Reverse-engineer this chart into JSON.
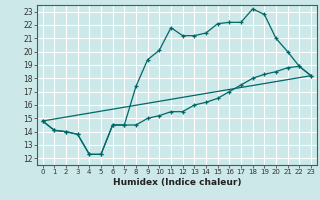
{
  "xlabel": "Humidex (Indice chaleur)",
  "bg_color": "#cce8e8",
  "grid_color": "#ffffff",
  "line_color": "#006868",
  "xlim": [
    -0.5,
    23.5
  ],
  "ylim": [
    11.5,
    23.5
  ],
  "yticks": [
    12,
    13,
    14,
    15,
    16,
    17,
    18,
    19,
    20,
    21,
    22,
    23
  ],
  "xticks": [
    0,
    1,
    2,
    3,
    4,
    5,
    6,
    7,
    8,
    9,
    10,
    11,
    12,
    13,
    14,
    15,
    16,
    17,
    18,
    19,
    20,
    21,
    22,
    23
  ],
  "line1_x": [
    0,
    1,
    2,
    3,
    4,
    5,
    6,
    7,
    8,
    9,
    10,
    11,
    12,
    13,
    14,
    15,
    16,
    17,
    18,
    19,
    20,
    21,
    22,
    23
  ],
  "line1_y": [
    14.8,
    14.1,
    14.0,
    13.8,
    12.3,
    12.3,
    14.5,
    14.5,
    17.4,
    19.4,
    20.1,
    21.8,
    21.2,
    21.2,
    21.4,
    22.1,
    22.2,
    22.2,
    23.2,
    22.8,
    21.0,
    20.0,
    18.9,
    18.2
  ],
  "line2_x": [
    0,
    1,
    2,
    3,
    4,
    5,
    6,
    7,
    8,
    9,
    10,
    11,
    12,
    13,
    14,
    15,
    16,
    17,
    18,
    19,
    20,
    21,
    22,
    23
  ],
  "line2_y": [
    14.8,
    14.1,
    14.0,
    13.8,
    12.3,
    12.3,
    14.5,
    14.5,
    14.5,
    15.0,
    15.2,
    15.5,
    15.5,
    16.0,
    16.2,
    16.5,
    17.0,
    17.5,
    18.0,
    18.3,
    18.5,
    18.8,
    18.9,
    18.2
  ],
  "line3_x": [
    0,
    23
  ],
  "line3_y": [
    14.8,
    18.2
  ]
}
